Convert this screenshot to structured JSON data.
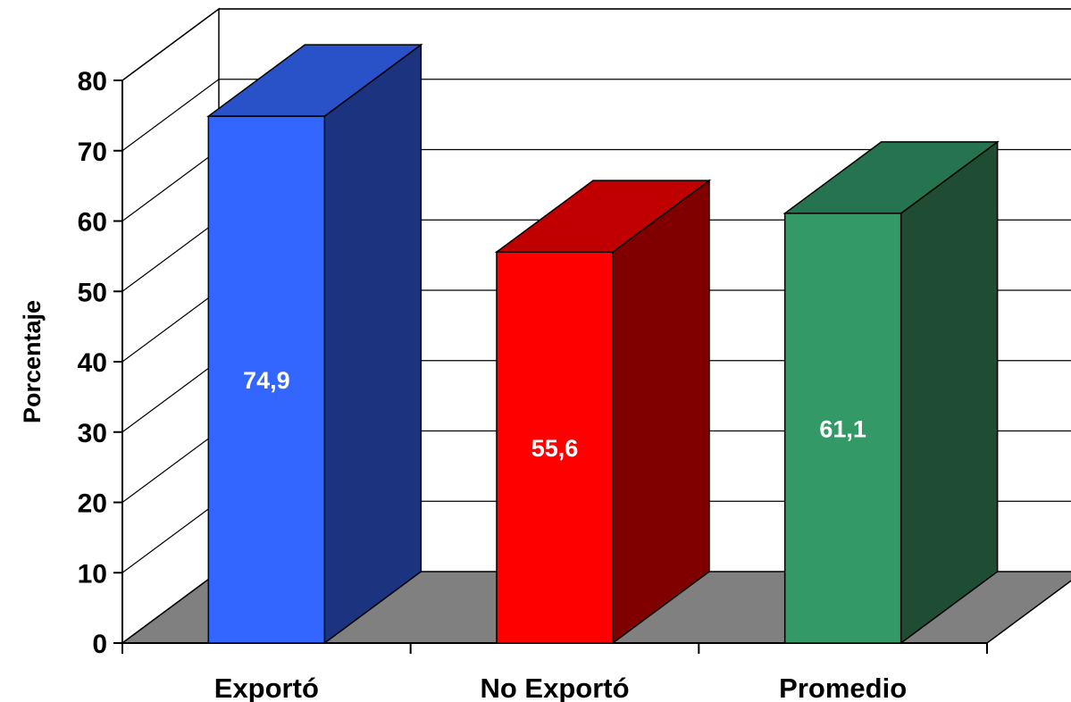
{
  "chart_data": {
    "type": "bar",
    "title": "",
    "xlabel": "",
    "ylabel": "Porcentaje",
    "ylim": [
      0,
      80
    ],
    "yticks": [
      "0",
      "10",
      "20",
      "30",
      "40",
      "50",
      "60",
      "70",
      "80"
    ],
    "categories": [
      "Exportó",
      "No Exportó",
      "Promedio"
    ],
    "values": [
      74.9,
      55.6,
      61.1
    ],
    "data_labels": [
      "74,9",
      "55,6",
      "61,1"
    ],
    "colors": [
      {
        "front": "#3366FF",
        "side": "#1C3380",
        "top": "#2A52C8"
      },
      {
        "front": "#FF0000",
        "side": "#800000",
        "top": "#C00000"
      },
      {
        "front": "#339966",
        "side": "#1E4D33",
        "top": "#267350"
      }
    ],
    "floor_color": "#808080",
    "grid": true,
    "legend": "none"
  }
}
